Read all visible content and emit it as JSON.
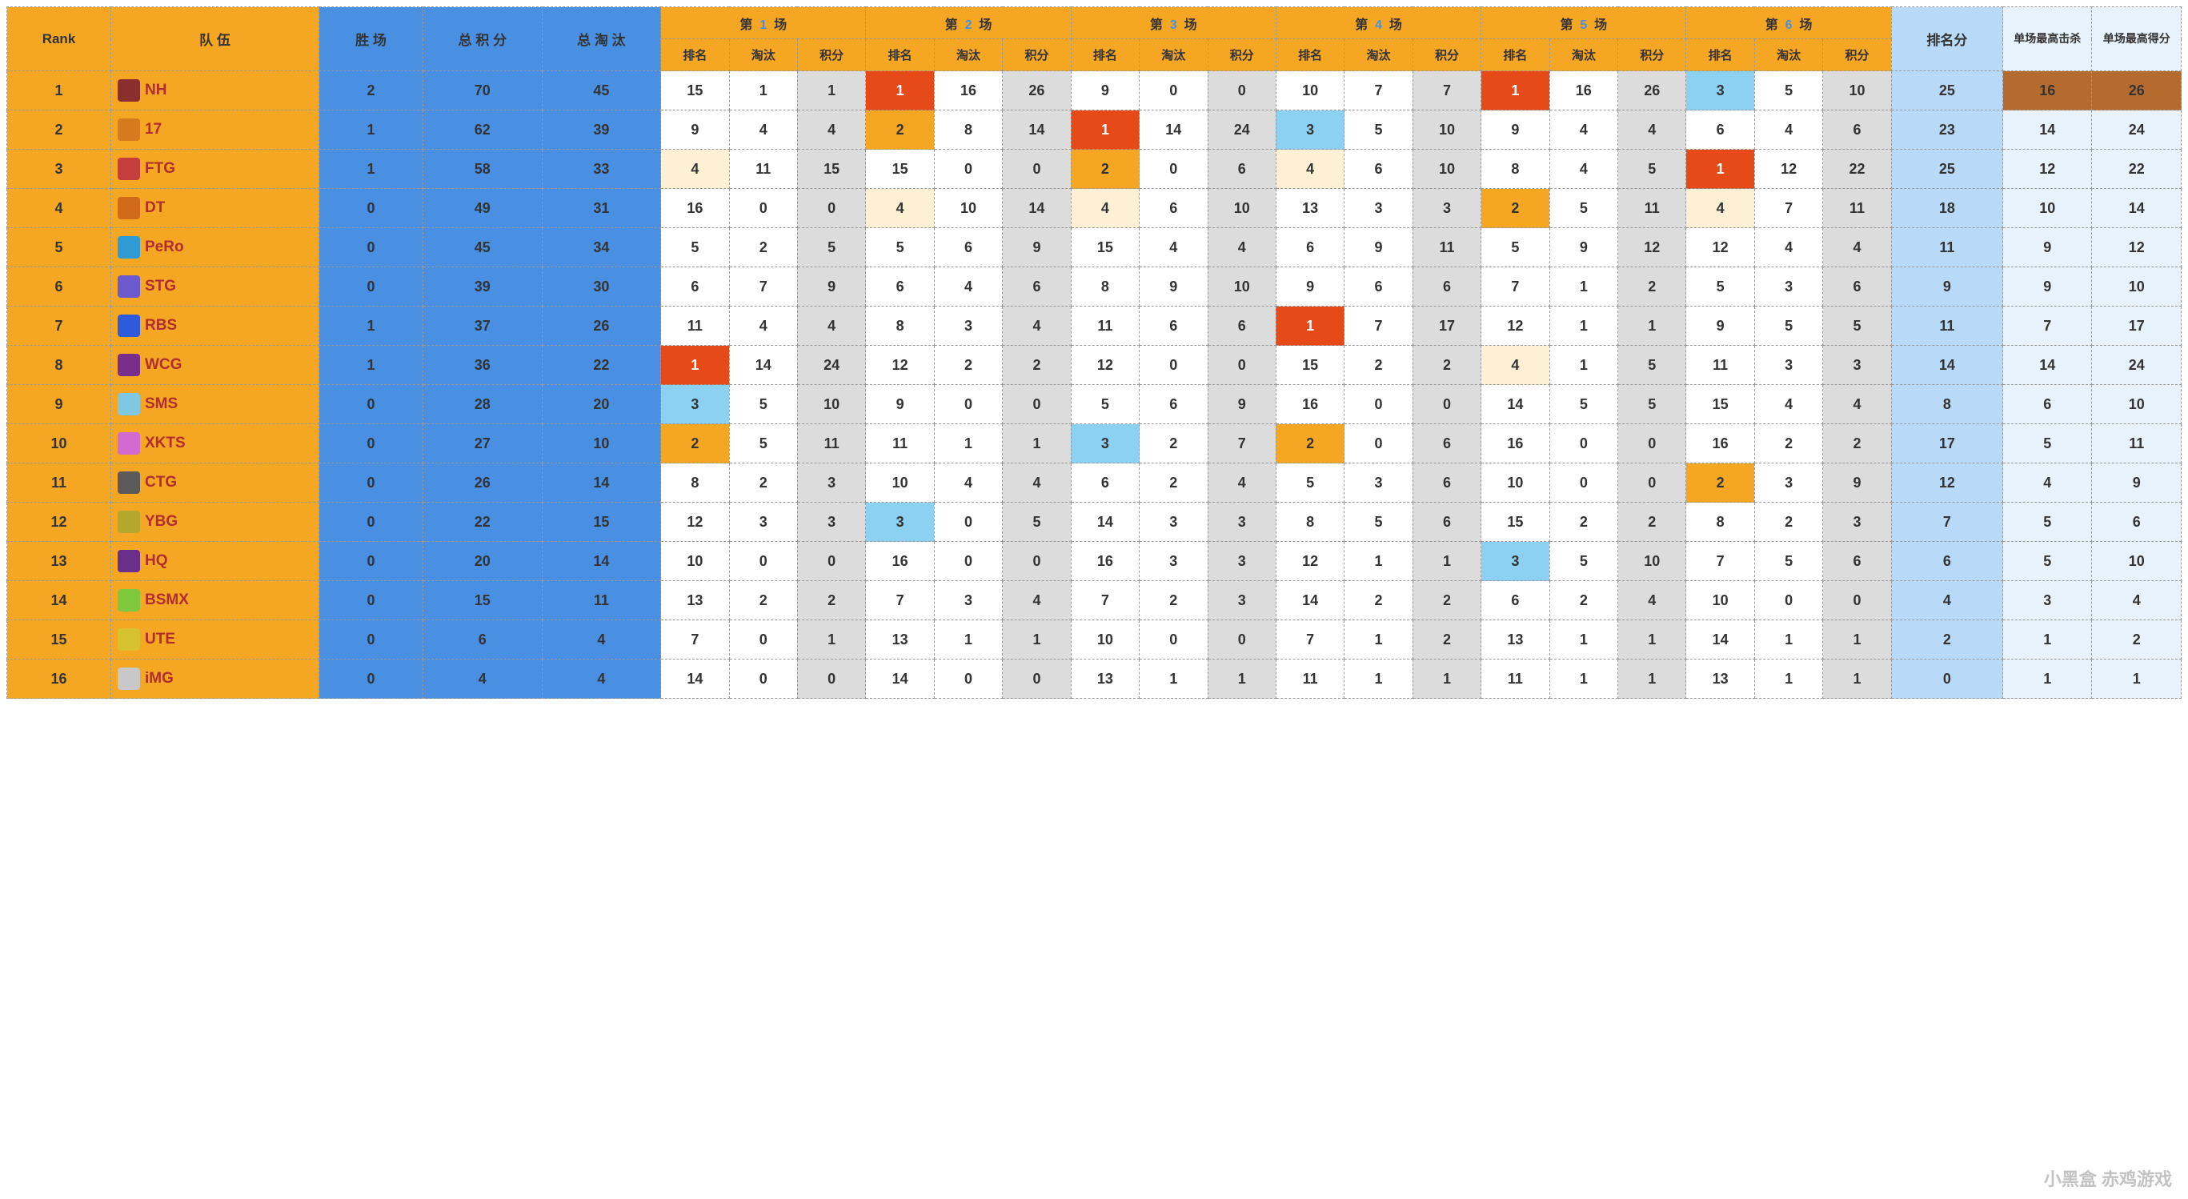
{
  "headers": {
    "rank": "Rank",
    "team": "队        伍",
    "wins": "胜  场",
    "total_points": "总 积 分",
    "total_elims": "总 淘 汰",
    "game_prefix": "第",
    "game_suffix": "场",
    "game_numbers": [
      "1",
      "2",
      "3",
      "4",
      "5",
      "6"
    ],
    "sub_rank": "排名",
    "sub_elim": "淘汰",
    "sub_points": "积分",
    "rank_points": "排名分",
    "max_kills": "单场最高击杀",
    "max_points": "单场最高得分"
  },
  "colors": {
    "header_orange": "#f5a623",
    "header_blue": "#4a90e2",
    "header_lblue": "#b8d9f7",
    "header_pale": "#e8f2fc",
    "cell_white": "#ffffff",
    "cell_grey": "#dcdcdc",
    "hl_red": "#e64a19",
    "hl_orange": "#f5a623",
    "hl_sky": "#8cd0f2",
    "hl_cream": "#fdf0d5",
    "hl_brown": "#b56a2e",
    "team_text": "#b02e2e",
    "border": "#999999"
  },
  "logo_colors": [
    "#8b2e2e",
    "#d67a1f",
    "#c53e3e",
    "#d16a1a",
    "#2e9bd6",
    "#6a5acd",
    "#2e5adb",
    "#7a2e8b",
    "#7ec8e3",
    "#d16ad1",
    "#5a5a5a",
    "#b5a62e",
    "#6a2e8b",
    "#7ec83e",
    "#d6c22e",
    "#c8c8c8"
  ],
  "teams": [
    {
      "rank": 1,
      "name": "NH",
      "wins": 2,
      "total": 70,
      "elims": 45,
      "games": [
        {
          "r": 15,
          "e": 1,
          "p": 1
        },
        {
          "r": 1,
          "e": 16,
          "p": 26
        },
        {
          "r": 9,
          "e": 0,
          "p": 0
        },
        {
          "r": 10,
          "e": 7,
          "p": 7
        },
        {
          "r": 1,
          "e": 16,
          "p": 26
        },
        {
          "r": 3,
          "e": 5,
          "p": 10
        }
      ],
      "hl": {
        "g2r": "red",
        "g5r": "red",
        "g6r": "sky"
      },
      "rankpt": 25,
      "maxk": 16,
      "maxp": 26,
      "maxk_hl": "brown",
      "maxp_hl": "brown"
    },
    {
      "rank": 2,
      "name": "17",
      "wins": 1,
      "total": 62,
      "elims": 39,
      "games": [
        {
          "r": 9,
          "e": 4,
          "p": 4
        },
        {
          "r": 2,
          "e": 8,
          "p": 14
        },
        {
          "r": 1,
          "e": 14,
          "p": 24
        },
        {
          "r": 3,
          "e": 5,
          "p": 10
        },
        {
          "r": 9,
          "e": 4,
          "p": 4
        },
        {
          "r": 6,
          "e": 4,
          "p": 6
        }
      ],
      "hl": {
        "g2r": "orange",
        "g3r": "red",
        "g4r": "sky"
      },
      "rankpt": 23,
      "maxk": 14,
      "maxp": 24
    },
    {
      "rank": 3,
      "name": "FTG",
      "wins": 1,
      "total": 58,
      "elims": 33,
      "games": [
        {
          "r": 4,
          "e": 11,
          "p": 15
        },
        {
          "r": 15,
          "e": 0,
          "p": 0
        },
        {
          "r": 2,
          "e": 0,
          "p": 6
        },
        {
          "r": 4,
          "e": 6,
          "p": 10
        },
        {
          "r": 8,
          "e": 4,
          "p": 5
        },
        {
          "r": 1,
          "e": 12,
          "p": 22
        }
      ],
      "hl": {
        "g1r": "cream",
        "g3r": "orange",
        "g4r": "cream",
        "g6r": "red"
      },
      "rankpt": 25,
      "maxk": 12,
      "maxp": 22
    },
    {
      "rank": 4,
      "name": "DT",
      "wins": 0,
      "total": 49,
      "elims": 31,
      "games": [
        {
          "r": 16,
          "e": 0,
          "p": 0
        },
        {
          "r": 4,
          "e": 10,
          "p": 14
        },
        {
          "r": 4,
          "e": 6,
          "p": 10
        },
        {
          "r": 13,
          "e": 3,
          "p": 3
        },
        {
          "r": 2,
          "e": 5,
          "p": 11
        },
        {
          "r": 4,
          "e": 7,
          "p": 11
        }
      ],
      "hl": {
        "g2r": "cream",
        "g3r": "cream",
        "g5r": "orange",
        "g6r": "cream"
      },
      "rankpt": 18,
      "maxk": 10,
      "maxp": 14
    },
    {
      "rank": 5,
      "name": "PeRo",
      "wins": 0,
      "total": 45,
      "elims": 34,
      "games": [
        {
          "r": 5,
          "e": 2,
          "p": 5
        },
        {
          "r": 5,
          "e": 6,
          "p": 9
        },
        {
          "r": 15,
          "e": 4,
          "p": 4
        },
        {
          "r": 6,
          "e": 9,
          "p": 11
        },
        {
          "r": 5,
          "e": 9,
          "p": 12
        },
        {
          "r": 12,
          "e": 4,
          "p": 4
        }
      ],
      "hl": {},
      "rankpt": 11,
      "maxk": 9,
      "maxp": 12
    },
    {
      "rank": 6,
      "name": "STG",
      "wins": 0,
      "total": 39,
      "elims": 30,
      "games": [
        {
          "r": 6,
          "e": 7,
          "p": 9
        },
        {
          "r": 6,
          "e": 4,
          "p": 6
        },
        {
          "r": 8,
          "e": 9,
          "p": 10
        },
        {
          "r": 9,
          "e": 6,
          "p": 6
        },
        {
          "r": 7,
          "e": 1,
          "p": 2
        },
        {
          "r": 5,
          "e": 3,
          "p": 6
        }
      ],
      "hl": {},
      "rankpt": 9,
      "maxk": 9,
      "maxp": 10
    },
    {
      "rank": 7,
      "name": "RBS",
      "wins": 1,
      "total": 37,
      "elims": 26,
      "games": [
        {
          "r": 11,
          "e": 4,
          "p": 4
        },
        {
          "r": 8,
          "e": 3,
          "p": 4
        },
        {
          "r": 11,
          "e": 6,
          "p": 6
        },
        {
          "r": 1,
          "e": 7,
          "p": 17
        },
        {
          "r": 12,
          "e": 1,
          "p": 1
        },
        {
          "r": 9,
          "e": 5,
          "p": 5
        }
      ],
      "hl": {
        "g4r": "red"
      },
      "rankpt": 11,
      "maxk": 7,
      "maxp": 17
    },
    {
      "rank": 8,
      "name": "WCG",
      "wins": 1,
      "total": 36,
      "elims": 22,
      "games": [
        {
          "r": 1,
          "e": 14,
          "p": 24
        },
        {
          "r": 12,
          "e": 2,
          "p": 2
        },
        {
          "r": 12,
          "e": 0,
          "p": 0
        },
        {
          "r": 15,
          "e": 2,
          "p": 2
        },
        {
          "r": 4,
          "e": 1,
          "p": 5
        },
        {
          "r": 11,
          "e": 3,
          "p": 3
        }
      ],
      "hl": {
        "g1r": "red",
        "g5r": "cream"
      },
      "rankpt": 14,
      "maxk": 14,
      "maxp": 24
    },
    {
      "rank": 9,
      "name": "SMS",
      "wins": 0,
      "total": 28,
      "elims": 20,
      "games": [
        {
          "r": 3,
          "e": 5,
          "p": 10
        },
        {
          "r": 9,
          "e": 0,
          "p": 0
        },
        {
          "r": 5,
          "e": 6,
          "p": 9
        },
        {
          "r": 16,
          "e": 0,
          "p": 0
        },
        {
          "r": 14,
          "e": 5,
          "p": 5
        },
        {
          "r": 15,
          "e": 4,
          "p": 4
        }
      ],
      "hl": {
        "g1r": "sky"
      },
      "rankpt": 8,
      "maxk": 6,
      "maxp": 10
    },
    {
      "rank": 10,
      "name": "XKTS",
      "wins": 0,
      "total": 27,
      "elims": 10,
      "games": [
        {
          "r": 2,
          "e": 5,
          "p": 11
        },
        {
          "r": 11,
          "e": 1,
          "p": 1
        },
        {
          "r": 3,
          "e": 2,
          "p": 7
        },
        {
          "r": 2,
          "e": 0,
          "p": 6
        },
        {
          "r": 16,
          "e": 0,
          "p": 0
        },
        {
          "r": 16,
          "e": 2,
          "p": 2
        }
      ],
      "hl": {
        "g1r": "orange",
        "g3r": "sky",
        "g4r": "orange"
      },
      "rankpt": 17,
      "maxk": 5,
      "maxp": 11
    },
    {
      "rank": 11,
      "name": "CTG",
      "wins": 0,
      "total": 26,
      "elims": 14,
      "games": [
        {
          "r": 8,
          "e": 2,
          "p": 3
        },
        {
          "r": 10,
          "e": 4,
          "p": 4
        },
        {
          "r": 6,
          "e": 2,
          "p": 4
        },
        {
          "r": 5,
          "e": 3,
          "p": 6
        },
        {
          "r": 10,
          "e": 0,
          "p": 0
        },
        {
          "r": 2,
          "e": 3,
          "p": 9
        }
      ],
      "hl": {
        "g6r": "orange"
      },
      "rankpt": 12,
      "maxk": 4,
      "maxp": 9
    },
    {
      "rank": 12,
      "name": "YBG",
      "wins": 0,
      "total": 22,
      "elims": 15,
      "games": [
        {
          "r": 12,
          "e": 3,
          "p": 3
        },
        {
          "r": 3,
          "e": 0,
          "p": 5
        },
        {
          "r": 14,
          "e": 3,
          "p": 3
        },
        {
          "r": 8,
          "e": 5,
          "p": 6
        },
        {
          "r": 15,
          "e": 2,
          "p": 2
        },
        {
          "r": 8,
          "e": 2,
          "p": 3
        }
      ],
      "hl": {
        "g2r": "sky"
      },
      "rankpt": 7,
      "maxk": 5,
      "maxp": 6
    },
    {
      "rank": 13,
      "name": "HQ",
      "wins": 0,
      "total": 20,
      "elims": 14,
      "games": [
        {
          "r": 10,
          "e": 0,
          "p": 0
        },
        {
          "r": 16,
          "e": 0,
          "p": 0
        },
        {
          "r": 16,
          "e": 3,
          "p": 3
        },
        {
          "r": 12,
          "e": 1,
          "p": 1
        },
        {
          "r": 3,
          "e": 5,
          "p": 10
        },
        {
          "r": 7,
          "e": 5,
          "p": 6
        }
      ],
      "hl": {
        "g5r": "sky"
      },
      "rankpt": 6,
      "maxk": 5,
      "maxp": 10
    },
    {
      "rank": 14,
      "name": "BSMX",
      "wins": 0,
      "total": 15,
      "elims": 11,
      "games": [
        {
          "r": 13,
          "e": 2,
          "p": 2
        },
        {
          "r": 7,
          "e": 3,
          "p": 4
        },
        {
          "r": 7,
          "e": 2,
          "p": 3
        },
        {
          "r": 14,
          "e": 2,
          "p": 2
        },
        {
          "r": 6,
          "e": 2,
          "p": 4
        },
        {
          "r": 10,
          "e": 0,
          "p": 0
        }
      ],
      "hl": {},
      "rankpt": 4,
      "maxk": 3,
      "maxp": 4
    },
    {
      "rank": 15,
      "name": "UTE",
      "wins": 0,
      "total": 6,
      "elims": 4,
      "games": [
        {
          "r": 7,
          "e": 0,
          "p": 1
        },
        {
          "r": 13,
          "e": 1,
          "p": 1
        },
        {
          "r": 10,
          "e": 0,
          "p": 0
        },
        {
          "r": 7,
          "e": 1,
          "p": 2
        },
        {
          "r": 13,
          "e": 1,
          "p": 1
        },
        {
          "r": 14,
          "e": 1,
          "p": 1
        }
      ],
      "hl": {},
      "rankpt": 2,
      "maxk": 1,
      "maxp": 2
    },
    {
      "rank": 16,
      "name": "iMG",
      "wins": 0,
      "total": 4,
      "elims": 4,
      "games": [
        {
          "r": 14,
          "e": 0,
          "p": 0
        },
        {
          "r": 14,
          "e": 0,
          "p": 0
        },
        {
          "r": 13,
          "e": 1,
          "p": 1
        },
        {
          "r": 11,
          "e": 1,
          "p": 1
        },
        {
          "r": 11,
          "e": 1,
          "p": 1
        },
        {
          "r": 13,
          "e": 1,
          "p": 1
        }
      ],
      "hl": {},
      "rankpt": 0,
      "maxk": 1,
      "maxp": 1
    }
  ],
  "watermark": "小黑盒  赤鸡游戏"
}
